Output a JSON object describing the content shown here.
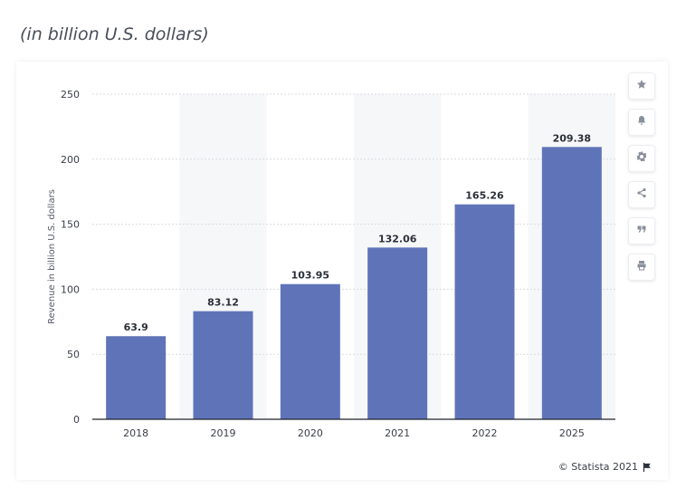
{
  "header": {
    "subtitle": "(in billion U.S. dollars)"
  },
  "toolbar": {
    "buttons": [
      {
        "name": "favorite-button",
        "icon": "star-icon"
      },
      {
        "name": "notification-button",
        "icon": "bell-icon"
      },
      {
        "name": "settings-button",
        "icon": "gear-icon"
      },
      {
        "name": "share-button",
        "icon": "share-icon"
      },
      {
        "name": "cite-button",
        "icon": "quote-icon"
      },
      {
        "name": "print-button",
        "icon": "printer-icon"
      }
    ]
  },
  "credit": {
    "text": "© Statista 2021",
    "icon": "flag-icon"
  },
  "colors": {
    "bar": "#5f74b8",
    "grid": "#d9dbe0",
    "band": "#f6f7f9",
    "tick_text": "#3a3e48"
  },
  "chart_data": {
    "type": "bar",
    "categories": [
      "2018",
      "2019",
      "2020",
      "2021",
      "2022",
      "2025"
    ],
    "values": [
      63.9,
      83.12,
      103.95,
      132.06,
      165.26,
      209.38
    ],
    "value_labels": [
      "63.9",
      "83.12",
      "103.95",
      "132.06",
      "165.26",
      "209.38"
    ],
    "title": "",
    "xlabel": "",
    "ylabel": "Revenue in billion U.S. dollars",
    "ylim": [
      0,
      250
    ],
    "yticks": [
      0,
      50,
      100,
      150,
      200,
      250
    ],
    "grid": true,
    "alternating_column_bands": true
  }
}
